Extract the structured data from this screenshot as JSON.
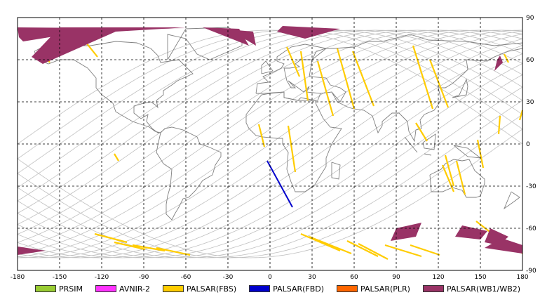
{
  "map": {
    "lon_range": [
      -180,
      180
    ],
    "lat_range": [
      -90,
      90
    ],
    "x_ticks": [
      -180,
      -150,
      -120,
      -90,
      -60,
      -30,
      0,
      30,
      60,
      90,
      120,
      150,
      180
    ],
    "y_ticks": [
      90,
      60,
      30,
      0,
      -30,
      -60,
      -90
    ],
    "x_tick_labels": [
      "-180",
      "-150",
      "-120",
      "-90",
      "-60",
      "-30",
      "0",
      "30",
      "60",
      "90",
      "120",
      "150",
      "180"
    ],
    "y_tick_labels": [
      "90",
      "60",
      "30",
      "0",
      "-30",
      "-60",
      "-90"
    ],
    "grid": "dashed",
    "colors": {
      "prsim": "#99cc33",
      "avnir": "#ff33ff",
      "fbs": "#ffcc00",
      "fbd": "#0000cc",
      "plr": "#ff6600",
      "wb": "#993366",
      "orbit": "#c0c0c0",
      "coast": "#808080"
    }
  },
  "legend": {
    "items": [
      {
        "label": "PRSIM",
        "color": "#99cc33"
      },
      {
        "label": "AVNIR-2",
        "color": "#ff33ff"
      },
      {
        "label": "PALSAR(FBS)",
        "color": "#ffcc00"
      },
      {
        "label": "PALSAR(FBD)",
        "color": "#0000cc"
      },
      {
        "label": "PALSAR(PLR)",
        "color": "#ff6600"
      },
      {
        "label": "PALSAR(WB1/WB2)",
        "color": "#993366"
      }
    ]
  }
}
